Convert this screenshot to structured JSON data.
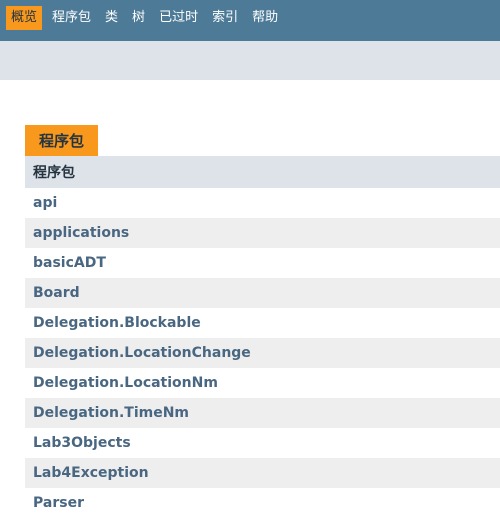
{
  "nav": {
    "items": [
      "概览",
      "程序包",
      "类",
      "树",
      "已过时",
      "索引",
      "帮助"
    ],
    "active_index": 0
  },
  "panel": {
    "tab_label": "程序包",
    "table_header": "程序包",
    "packages": [
      "api",
      "applications",
      "basicADT",
      "Board",
      "Delegation.Blockable",
      "Delegation.LocationChange",
      "Delegation.LocationNm",
      "Delegation.TimeNm",
      "Lab3Objects",
      "Lab4Exception",
      "Parser"
    ]
  },
  "colors": {
    "topbar": "#4d7a97",
    "accent_orange": "#f8981d",
    "subbar": "#dee3e9",
    "link": "#4a6782"
  }
}
